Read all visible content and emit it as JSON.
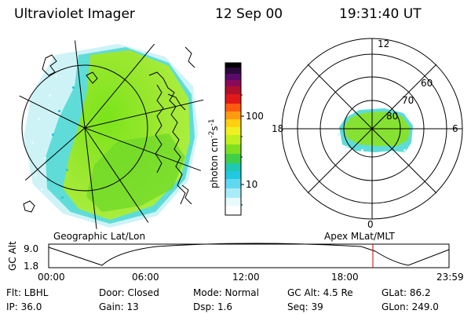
{
  "header": {
    "instrument": "Ultraviolet Imager",
    "date": "12 Sep 00",
    "time": "19:31:40 UT"
  },
  "left_panel": {
    "label": "Geographic Lat/Lon"
  },
  "right_panel": {
    "label": "Apex MLat/MLT",
    "mlt_labels": [
      "12",
      "18",
      "6",
      "0"
    ],
    "lat_labels": [
      "60",
      "70",
      "80"
    ]
  },
  "colorbar": {
    "unit_label": "photon cm",
    "unit_exp1": "-2",
    "unit_s": "s",
    "unit_exp2": "-1",
    "ticks": [
      "100",
      "10"
    ],
    "colors": [
      "#000000",
      "#4b0055",
      "#7f0080",
      "#ff0000",
      "#ff8000",
      "#ffd000",
      "#c8f000",
      "#78e000",
      "#00c8d8",
      "#40e0f0",
      "#a0f0f8",
      "#ffffff"
    ]
  },
  "altitude_plot": {
    "ylabel": "GC Alt",
    "yticks": [
      "9.0",
      "1.8"
    ],
    "xticks": [
      "00:00",
      "06:00",
      "12:00",
      "18:00",
      "23:59"
    ],
    "marker_color": "#cc0000"
  },
  "info": {
    "flt": "Flt: LBHL",
    "door": "Door: Closed",
    "mode": "Mode: Normal",
    "gcalt": "GC Alt: 4.5 Re",
    "glat": "GLat:  86.2",
    "ip": "IP: 36.0",
    "gain": "Gain: 13",
    "dsp": "Dsp:   1.6",
    "seq": "Seq: 39",
    "glon": "GLon: 249.0"
  }
}
